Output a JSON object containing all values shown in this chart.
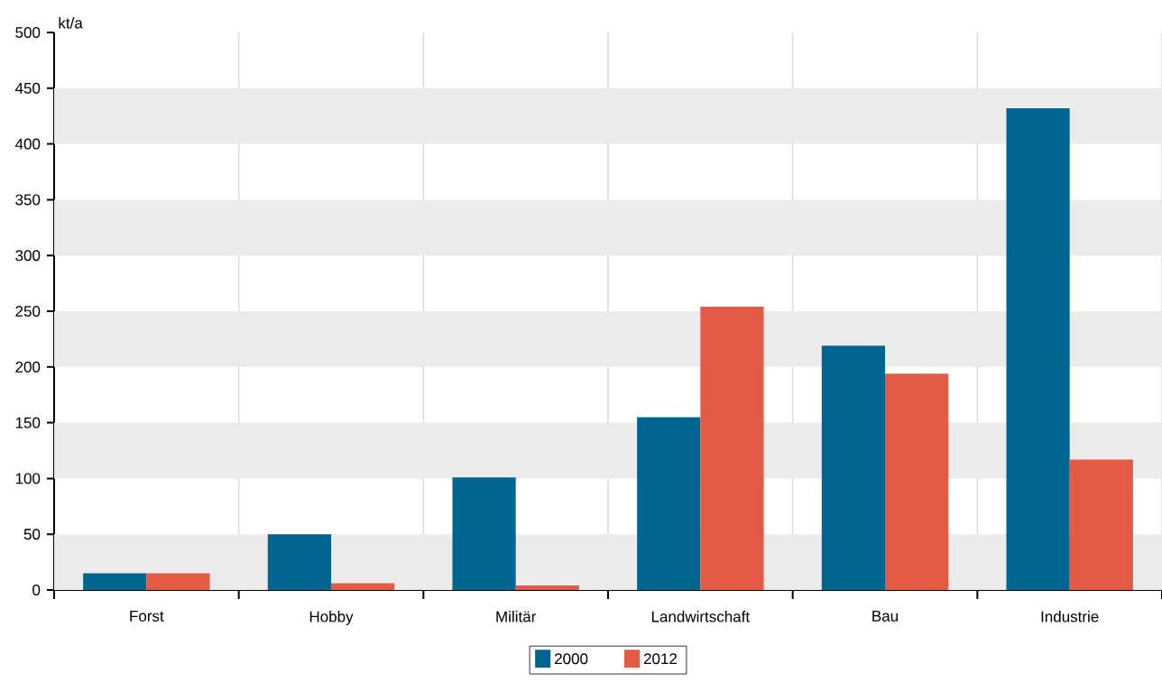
{
  "chart_data": {
    "type": "bar",
    "ylabel": "kt/a",
    "categories": [
      "Forst",
      "Hobby",
      "Militär",
      "Landwirtschaft",
      "Bau",
      "Industrie"
    ],
    "series": [
      {
        "name": "2000",
        "color": "#006690",
        "values": [
          15,
          50,
          101,
          155,
          219,
          432
        ]
      },
      {
        "name": "2012",
        "color": "#e35b44",
        "values": [
          15,
          6,
          4,
          254,
          194,
          117
        ]
      }
    ],
    "ylim": [
      0,
      500
    ],
    "yticks": [
      0,
      50,
      100,
      150,
      200,
      250,
      300,
      350,
      400,
      450,
      500
    ],
    "grid": true,
    "legend": "bottom"
  }
}
